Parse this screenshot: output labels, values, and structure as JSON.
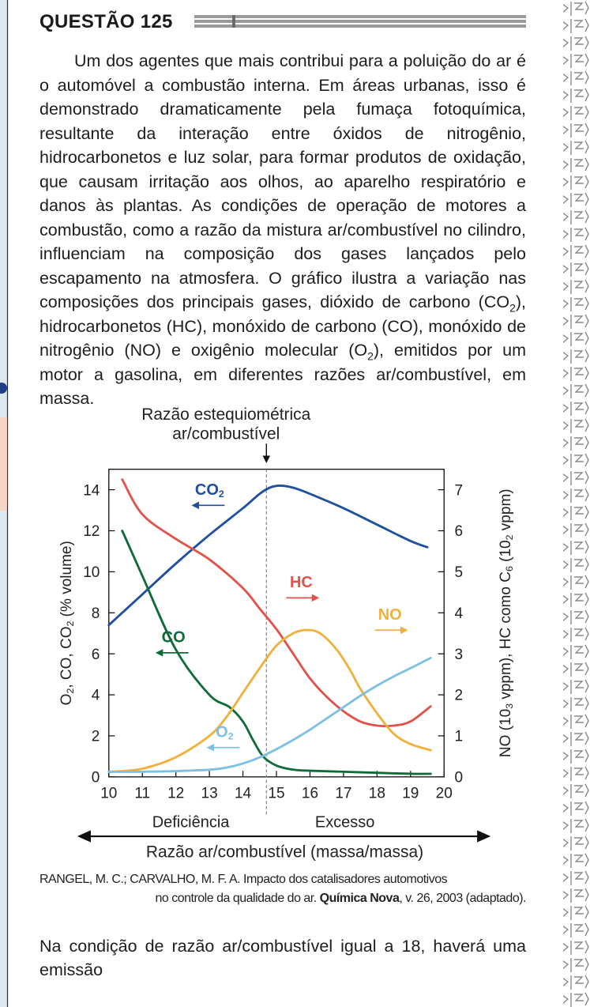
{
  "question": {
    "title": "QUESTÃO 125",
    "body_parts": [
      "Um dos agentes que mais contribui para a poluição do ar é o automóvel a combustão interna. Em áreas urbanas, isso é demonstrado dramaticamente pela fumaça fotoquímica, resultante da interação entre óxidos de nitrogênio, hidrocarbonetos e luz solar, para formar produtos de oxidação, que causam irritação aos olhos, ao aparelho respiratório e danos às plantas. As condições de operação de motores a combustão, como a razão da mistura ar/combustível no cilindro, influenciam na composição dos gases lançados pelo escapamento na atmosfera. O gráfico ilustra a variação nas composições dos principais gases, dióxido de carbono (CO",
      "2",
      "), hidrocarbonetos (HC), monóxido de carbono (CO), monóxido de nitrogênio (NO) e oxigênio molecular (O",
      "2",
      "), emitidos por um motor a gasolina, em diferentes razões ar/combustível, em massa."
    ],
    "source_line1": "RANGEL, M. C.; CARVALHO, M. F. A. Impacto dos catalisadores automotivos",
    "source_line2_pre": "no controle da qualidade do ar. ",
    "source_journal": "Química Nova",
    "source_line2_post": ", v. 26, 2003 (adaptado).",
    "prompt": "Na condição de razão ar/combustível igual a 18, haverá uma emissão"
  },
  "chart_data": {
    "type": "line",
    "annotation_top_line1": "Razão estequiométrica",
    "annotation_top_line2": "ar/combustível",
    "stoichiometric_x": 14.7,
    "xlabel": "Razão ar/combustível (massa/massa)",
    "x_region_left": "Deficiência",
    "x_region_right": "Excesso",
    "xlim": [
      10,
      20
    ],
    "x_ticks": [
      "10",
      "11",
      "12",
      "13",
      "14",
      "15",
      "16",
      "17",
      "18",
      "19",
      "20"
    ],
    "ylabel_left_parts": [
      "O",
      "2",
      ", CO, CO",
      "2",
      " (% volume)"
    ],
    "ylim_left": [
      0,
      15
    ],
    "y_ticks_left": [
      "0",
      "2",
      "4",
      "6",
      "8",
      "10",
      "12",
      "14"
    ],
    "ylabel_right_parts": [
      "NO (10",
      "3",
      " vppm), HC como C",
      "6",
      " (10",
      "2",
      " vppm)"
    ],
    "ylim_right": [
      0,
      7.5
    ],
    "y_ticks_right": [
      "0",
      "1",
      "2",
      "3",
      "4",
      "5",
      "6",
      "7"
    ],
    "series": [
      {
        "name": "CO",
        "sub": "2",
        "axis": "left",
        "color": "#1f4fa0",
        "arrow": "left",
        "x": [
          10,
          11,
          12,
          13,
          14,
          14.5,
          14.8,
          15.1,
          15.5,
          16,
          17,
          18,
          19,
          19.5
        ],
        "y": [
          7.4,
          8.9,
          10.4,
          11.8,
          13.1,
          13.8,
          14.1,
          14.2,
          14.1,
          13.8,
          13.1,
          12.3,
          11.5,
          11.2
        ]
      },
      {
        "name": "HC",
        "axis": "right",
        "color": "#e0524a",
        "arrow": "right",
        "x": [
          10.4,
          11,
          12,
          13,
          14,
          14.5,
          15,
          15.5,
          16,
          16.5,
          17,
          17.5,
          18,
          18.5,
          19,
          19.6
        ],
        "y": [
          7.25,
          6.4,
          5.8,
          5.3,
          4.6,
          4.1,
          3.6,
          3.0,
          2.4,
          1.95,
          1.6,
          1.35,
          1.25,
          1.25,
          1.35,
          1.72
        ]
      },
      {
        "name": "CO",
        "axis": "left",
        "color": "#0f6b3a",
        "arrow": "left",
        "x": [
          10.4,
          11,
          12,
          13,
          13.6,
          14,
          14.3,
          14.6,
          15,
          15.5,
          16,
          17,
          18,
          19,
          19.6
        ],
        "y": [
          12.0,
          9.8,
          6.2,
          4.0,
          3.4,
          2.7,
          1.8,
          1.0,
          0.55,
          0.35,
          0.3,
          0.25,
          0.2,
          0.15,
          0.15
        ]
      },
      {
        "name": "NO",
        "axis": "right",
        "color": "#f0b03c",
        "arrow": "right",
        "x": [
          10,
          11,
          12,
          13,
          13.5,
          14,
          14.5,
          15,
          15.5,
          15.9,
          16.3,
          16.8,
          17.2,
          17.5,
          18,
          18.5,
          19,
          19.6
        ],
        "y": [
          0.12,
          0.2,
          0.48,
          1.0,
          1.45,
          2.05,
          2.65,
          3.2,
          3.5,
          3.58,
          3.5,
          3.1,
          2.6,
          2.15,
          1.55,
          1.05,
          0.8,
          0.65
        ]
      },
      {
        "name": "O",
        "sub": "2",
        "axis": "left",
        "color": "#7ec0e0",
        "arrow": "left",
        "x": [
          10,
          11,
          12,
          13,
          13.5,
          14,
          14.5,
          15,
          15.5,
          16,
          16.5,
          17,
          17.5,
          18,
          18.5,
          19,
          19.6
        ],
        "y": [
          0.25,
          0.25,
          0.28,
          0.35,
          0.45,
          0.65,
          0.95,
          1.35,
          1.8,
          2.3,
          2.85,
          3.4,
          3.95,
          4.45,
          4.9,
          5.3,
          5.8
        ]
      }
    ]
  }
}
